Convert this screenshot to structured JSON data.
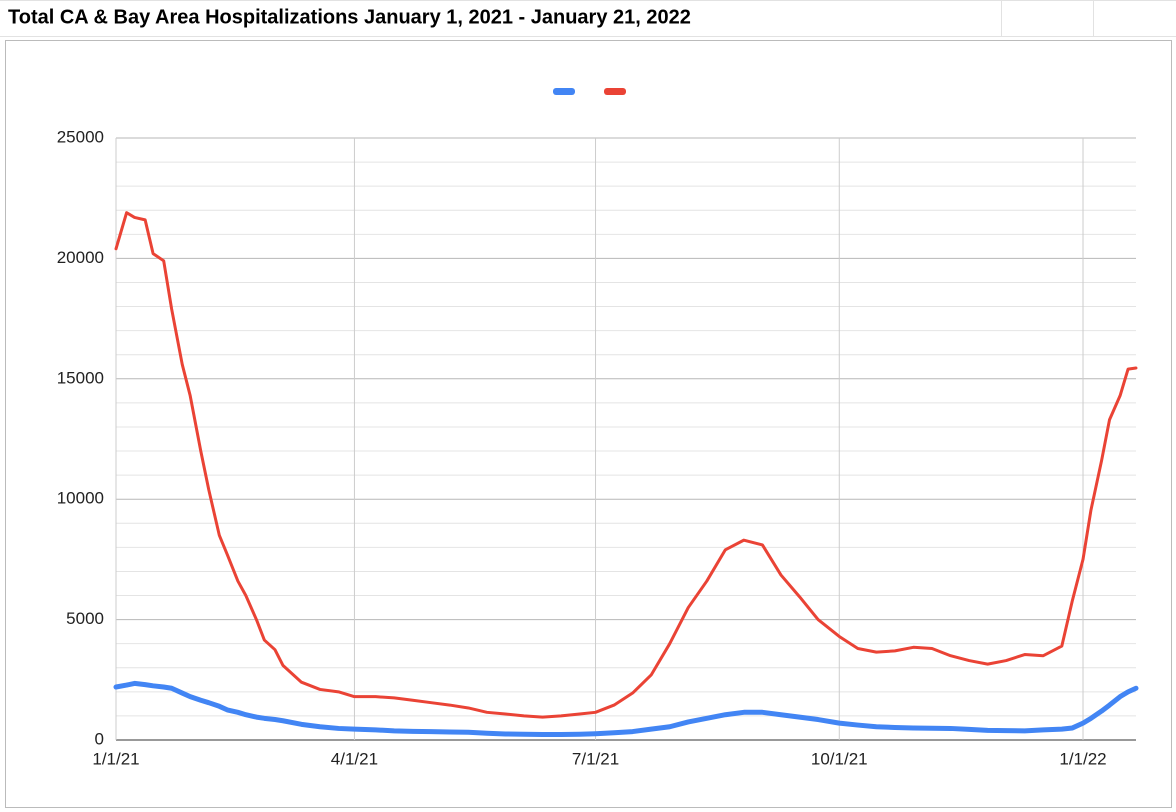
{
  "chart_data": {
    "type": "line",
    "title": "Total CA & Bay Area Hospitalizations January 1, 2021 - January 21, 2022",
    "x": [
      "1/1/21",
      "1/5/21",
      "1/8/21",
      "1/12/21",
      "1/15/21",
      "1/19/21",
      "1/22/21",
      "1/26/21",
      "1/29/21",
      "2/2/21",
      "2/5/21",
      "2/9/21",
      "2/12/21",
      "2/16/21",
      "2/19/21",
      "2/23/21",
      "2/26/21",
      "3/2/21",
      "3/5/21",
      "3/12/21",
      "3/19/21",
      "3/26/21",
      "4/1/21",
      "4/9/21",
      "4/16/21",
      "4/23/21",
      "4/30/21",
      "5/7/21",
      "5/14/21",
      "5/21/21",
      "5/28/21",
      "6/4/21",
      "6/11/21",
      "6/18/21",
      "6/25/21",
      "7/1/21",
      "7/8/21",
      "7/15/21",
      "7/22/21",
      "7/29/21",
      "8/5/21",
      "8/12/21",
      "8/19/21",
      "8/26/21",
      "9/2/21",
      "9/9/21",
      "9/16/21",
      "9/23/21",
      "10/1/21",
      "10/8/21",
      "10/15/21",
      "10/22/21",
      "10/29/21",
      "11/5/21",
      "11/12/21",
      "11/19/21",
      "11/26/21",
      "12/3/21",
      "12/10/21",
      "12/17/21",
      "12/24/21",
      "12/28/21",
      "1/1/22",
      "1/4/22",
      "1/8/22",
      "1/11/22",
      "1/15/22",
      "1/18/22",
      "1/21/22"
    ],
    "series": [
      {
        "color": "#4285f4",
        "values": [
          2200,
          2280,
          2350,
          2300,
          2250,
          2200,
          2150,
          1950,
          1800,
          1650,
          1550,
          1400,
          1250,
          1150,
          1050,
          950,
          900,
          850,
          800,
          650,
          550,
          480,
          450,
          420,
          380,
          360,
          350,
          330,
          320,
          280,
          250,
          240,
          230,
          230,
          240,
          260,
          300,
          350,
          450,
          550,
          750,
          900,
          1050,
          1150,
          1150,
          1050,
          950,
          850,
          700,
          620,
          550,
          520,
          500,
          490,
          480,
          440,
          400,
          390,
          380,
          420,
          450,
          500,
          700,
          900,
          1200,
          1450,
          1800,
          2000,
          2150
        ]
      },
      {
        "color": "#ea4335",
        "values": [
          20400,
          21900,
          21700,
          21600,
          20200,
          19900,
          17900,
          15600,
          14300,
          12000,
          10400,
          8500,
          7700,
          6600,
          6000,
          5000,
          4150,
          3750,
          3100,
          2400,
          2100,
          2000,
          1800,
          1800,
          1750,
          1650,
          1550,
          1450,
          1330,
          1150,
          1080,
          1000,
          950,
          1000,
          1080,
          1150,
          1450,
          1950,
          2700,
          4000,
          5500,
          6600,
          7900,
          8300,
          8100,
          6850,
          5950,
          5000,
          4300,
          3800,
          3650,
          3700,
          3850,
          3800,
          3500,
          3300,
          3150,
          3300,
          3550,
          3500,
          3900,
          5800,
          7500,
          9550,
          11600,
          13300,
          14300,
          15400,
          15450
        ]
      }
    ],
    "xlim": [
      "1/1/21",
      "1/21/22"
    ],
    "xticks": [
      "1/1/21",
      "4/1/21",
      "7/1/21",
      "10/1/21",
      "1/1/22"
    ],
    "ylim": [
      0,
      25000
    ],
    "yticks": [
      0,
      5000,
      10000,
      15000,
      20000,
      25000
    ],
    "minor_grid_count": 4,
    "grid": true
  }
}
